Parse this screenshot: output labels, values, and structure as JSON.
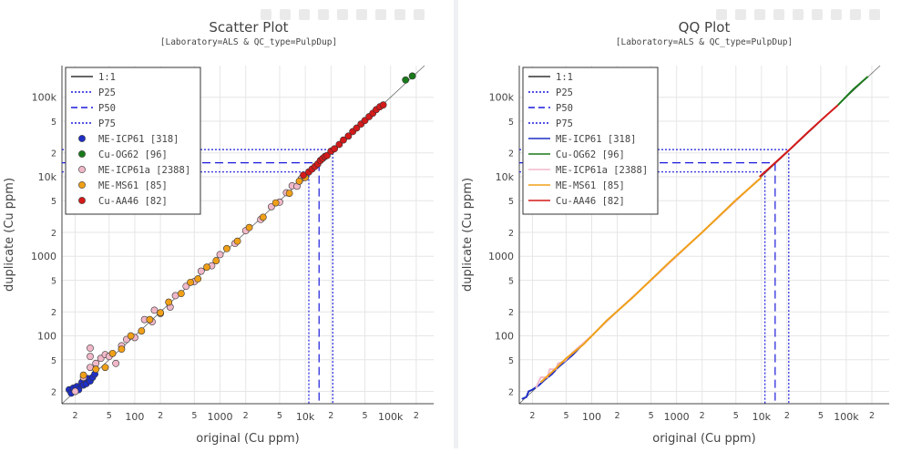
{
  "colors": {
    "ref_line": "#000000",
    "percentile_line": "#1a1adb",
    "ME-ICP61": "#1f2fc4",
    "Cu-OG62": "#1a7a1a",
    "ME-ICP61a": "#f0b8c8",
    "ME-MS61": "#f0a018",
    "Cu-AA46": "#d41a1a",
    "grid": "#e6e6e6",
    "axis": "#444444"
  },
  "tick_labels": {
    "x_major": [
      {
        "v": 100,
        "label": "100"
      },
      {
        "v": 1000,
        "label": "1000"
      },
      {
        "v": 10000,
        "label": "10k"
      },
      {
        "v": 100000,
        "label": "100k"
      }
    ],
    "x_minor": [
      {
        "v": 20,
        "label": "2"
      },
      {
        "v": 50,
        "label": "5"
      },
      {
        "v": 200,
        "label": "2"
      },
      {
        "v": 500,
        "label": "5"
      },
      {
        "v": 2000,
        "label": "2"
      },
      {
        "v": 5000,
        "label": "5"
      },
      {
        "v": 20000,
        "label": "2"
      },
      {
        "v": 50000,
        "label": "5"
      },
      {
        "v": 200000,
        "label": "2"
      }
    ],
    "y_major": [
      {
        "v": 100,
        "label": "100"
      },
      {
        "v": 1000,
        "label": "1000"
      },
      {
        "v": 10000,
        "label": "10k"
      },
      {
        "v": 100000,
        "label": "100k"
      }
    ],
    "y_minor": [
      {
        "v": 20,
        "label": "2"
      },
      {
        "v": 50,
        "label": "5"
      },
      {
        "v": 200,
        "label": "2"
      },
      {
        "v": 500,
        "label": "5"
      },
      {
        "v": 2000,
        "label": "2"
      },
      {
        "v": 5000,
        "label": "5"
      },
      {
        "v": 20000,
        "label": "2"
      },
      {
        "v": 50000,
        "label": "5"
      }
    ]
  },
  "chart_data": [
    {
      "type": "scatter",
      "title": "Scatter Plot",
      "subtitle": "[Laboratory=ALS & QC_type=PulpDup]",
      "xlabel": "original (Cu ppm)",
      "ylabel": "duplicate (Cu ppm)",
      "log_x": true,
      "log_y": true,
      "xlim": [
        14,
        320000
      ],
      "ylim": [
        14,
        250000
      ],
      "grid": true,
      "legend_position": "top-left",
      "legend": [
        {
          "label": "1:1",
          "kind": "line",
          "dash": "solid",
          "color": "#333333"
        },
        {
          "label": "P25",
          "kind": "line",
          "dash": "dot",
          "color": "#1a1adb"
        },
        {
          "label": "P50",
          "kind": "line",
          "dash": "dash",
          "color": "#1a1adb"
        },
        {
          "label": "P75",
          "kind": "line",
          "dash": "dot",
          "color": "#1a1adb"
        },
        {
          "label": "ME-ICP61 [318]",
          "kind": "marker",
          "color": "#1f2fc4"
        },
        {
          "label": "Cu-OG62 [96]",
          "kind": "marker",
          "color": "#1a7a1a"
        },
        {
          "label": "ME-ICP61a [2388]",
          "kind": "marker",
          "color": "#f0b8c8"
        },
        {
          "label": "ME-MS61 [85]",
          "kind": "marker",
          "color": "#f0a018"
        },
        {
          "label": "Cu-AA46 [82]",
          "kind": "marker",
          "color": "#d41a1a"
        }
      ],
      "percentiles": [
        {
          "name": "P25",
          "x": 11000,
          "y": 11500
        },
        {
          "name": "P50",
          "x": 14500,
          "y": 15000
        },
        {
          "name": "P75",
          "x": 21000,
          "y": 22000
        }
      ],
      "series": [
        {
          "name": "ME-ICP61 [318]",
          "color": "#1f2fc4",
          "points": [
            [
              17,
              21
            ],
            [
              18,
              19
            ],
            [
              19,
              22
            ],
            [
              20,
              20
            ],
            [
              21,
              23
            ],
            [
              22,
              21
            ],
            [
              24,
              26
            ],
            [
              25,
              24
            ],
            [
              27,
              25
            ],
            [
              28,
              29
            ],
            [
              30,
              27
            ],
            [
              32,
              30
            ],
            [
              34,
              33
            ]
          ]
        },
        {
          "name": "Cu-OG62 [96]",
          "color": "#1a7a1a",
          "points": [
            [
              150000,
              165000
            ],
            [
              180000,
              185000
            ]
          ]
        },
        {
          "name": "ME-ICP61a [2388]",
          "color": "#f0b8c8",
          "points": [
            [
              20,
              20
            ],
            [
              25,
              30
            ],
            [
              30,
              40
            ],
            [
              30,
              70
            ],
            [
              30,
              55
            ],
            [
              35,
              45
            ],
            [
              40,
              52
            ],
            [
              45,
              58
            ],
            [
              50,
              55
            ],
            [
              60,
              45
            ],
            [
              70,
              75
            ],
            [
              80,
              90
            ],
            [
              100,
              95
            ],
            [
              130,
              160
            ],
            [
              160,
              150
            ],
            [
              170,
              210
            ],
            [
              200,
              190
            ],
            [
              260,
              230
            ],
            [
              300,
              320
            ],
            [
              400,
              420
            ],
            [
              500,
              480
            ],
            [
              600,
              650
            ],
            [
              800,
              760
            ],
            [
              1000,
              1050
            ],
            [
              1500,
              1450
            ],
            [
              2000,
              2100
            ],
            [
              3000,
              2900
            ],
            [
              4000,
              4200
            ],
            [
              5000,
              4800
            ],
            [
              6000,
              6300
            ],
            [
              7000,
              7700
            ],
            [
              8000,
              7600
            ],
            [
              9000,
              9500
            ]
          ]
        },
        {
          "name": "ME-MS61 [85]",
          "color": "#f0a018",
          "points": [
            [
              25,
              32
            ],
            [
              35,
              38
            ],
            [
              45,
              40
            ],
            [
              55,
              60
            ],
            [
              70,
              68
            ],
            [
              90,
              100
            ],
            [
              120,
              115
            ],
            [
              150,
              160
            ],
            [
              200,
              195
            ],
            [
              250,
              265
            ],
            [
              350,
              340
            ],
            [
              450,
              470
            ],
            [
              550,
              520
            ],
            [
              700,
              730
            ],
            [
              900,
              880
            ],
            [
              1200,
              1250
            ],
            [
              1600,
              1550
            ],
            [
              2200,
              2300
            ],
            [
              3200,
              3100
            ],
            [
              4500,
              4700
            ],
            [
              6500,
              6200
            ],
            [
              8500,
              8800
            ],
            [
              10000,
              9800
            ]
          ]
        },
        {
          "name": "Cu-AA46 [82]",
          "color": "#d41a1a",
          "points": [
            [
              9500,
              10500
            ],
            [
              11000,
              11500
            ],
            [
              12000,
              12500
            ],
            [
              13000,
              13500
            ],
            [
              14000,
              14500
            ],
            [
              15000,
              16000
            ],
            [
              16000,
              17000
            ],
            [
              17000,
              18000
            ],
            [
              18000,
              18500
            ],
            [
              20000,
              21000
            ],
            [
              22000,
              22500
            ],
            [
              25000,
              25500
            ],
            [
              28000,
              29000
            ],
            [
              32000,
              32500
            ],
            [
              36000,
              37000
            ],
            [
              40000,
              41000
            ],
            [
              45000,
              46000
            ],
            [
              50000,
              51000
            ],
            [
              56000,
              57000
            ],
            [
              62000,
              63000
            ],
            [
              68000,
              70000
            ],
            [
              75000,
              76000
            ],
            [
              82000,
              80000
            ]
          ]
        }
      ]
    },
    {
      "type": "line",
      "title": "QQ Plot",
      "subtitle": "[Laboratory=ALS & QC_type=PulpDup]",
      "xlabel": "original (Cu ppm)",
      "ylabel": "duplicate (Cu ppm)",
      "log_x": true,
      "log_y": true,
      "xlim": [
        14,
        320000
      ],
      "ylim": [
        14,
        250000
      ],
      "grid": true,
      "legend_position": "top-left",
      "legend": [
        {
          "label": "1:1",
          "kind": "line",
          "dash": "solid",
          "color": "#333333"
        },
        {
          "label": "P25",
          "kind": "line",
          "dash": "dot",
          "color": "#1a1adb"
        },
        {
          "label": "P50",
          "kind": "line",
          "dash": "dash",
          "color": "#1a1adb"
        },
        {
          "label": "P75",
          "kind": "line",
          "dash": "dot",
          "color": "#1a1adb"
        },
        {
          "label": "ME-ICP61 [318]",
          "kind": "line",
          "dash": "solid",
          "color": "#1f2fc4"
        },
        {
          "label": "Cu-OG62 [96]",
          "kind": "line",
          "dash": "solid",
          "color": "#1a7a1a"
        },
        {
          "label": "ME-ICP61a [2388]",
          "kind": "line",
          "dash": "solid",
          "color": "#f0b8c8"
        },
        {
          "label": "ME-MS61 [85]",
          "kind": "line",
          "dash": "solid",
          "color": "#f0a018"
        },
        {
          "label": "Cu-AA46 [82]",
          "kind": "line",
          "dash": "solid",
          "color": "#d41a1a"
        }
      ],
      "percentiles": [
        {
          "name": "P25",
          "x": 11000,
          "y": 11500
        },
        {
          "name": "P50",
          "x": 14500,
          "y": 15000
        },
        {
          "name": "P75",
          "x": 21000,
          "y": 22000
        }
      ],
      "series": [
        {
          "name": "ME-ICP61 [318]",
          "color": "#1f2fc4",
          "points": [
            [
              15,
              16
            ],
            [
              17,
              17
            ],
            [
              18,
              20
            ],
            [
              20,
              21
            ],
            [
              24,
              24
            ],
            [
              28,
              28
            ],
            [
              34,
              33
            ],
            [
              40,
              40
            ],
            [
              60,
              58
            ],
            [
              80,
              80
            ]
          ]
        },
        {
          "name": "ME-ICP61a [2388]",
          "color": "#f0b8c8",
          "points": [
            [
              22,
              22
            ],
            [
              25,
              30
            ],
            [
              30,
              30
            ],
            [
              32,
              38
            ],
            [
              38,
              38
            ],
            [
              40,
              45
            ],
            [
              48,
              48
            ],
            [
              60,
              62
            ],
            [
              100,
              100
            ],
            [
              200,
              205
            ],
            [
              500,
              500
            ],
            [
              1000,
              1000
            ],
            [
              3000,
              3000
            ],
            [
              9000,
              9000
            ]
          ]
        },
        {
          "name": "ME-MS61 [85]",
          "color": "#f0a018",
          "points": [
            [
              25,
              26
            ],
            [
              35,
              36
            ],
            [
              50,
              52
            ],
            [
              80,
              78
            ],
            [
              150,
              155
            ],
            [
              300,
              300
            ],
            [
              800,
              820
            ],
            [
              2000,
              2000
            ],
            [
              5000,
              5100
            ],
            [
              10000,
              9800
            ]
          ]
        },
        {
          "name": "Cu-AA46 [82]",
          "color": "#d41a1a",
          "points": [
            [
              9500,
              10000
            ],
            [
              12000,
              12500
            ],
            [
              16000,
              16500
            ],
            [
              22000,
              22500
            ],
            [
              35000,
              36000
            ],
            [
              50000,
              51000
            ],
            [
              80000,
              80000
            ]
          ]
        },
        {
          "name": "Cu-OG62 [96]",
          "color": "#1a7a1a",
          "points": [
            [
              80000,
              80000
            ],
            [
              120000,
              125000
            ],
            [
              180000,
              182000
            ]
          ]
        }
      ]
    }
  ]
}
